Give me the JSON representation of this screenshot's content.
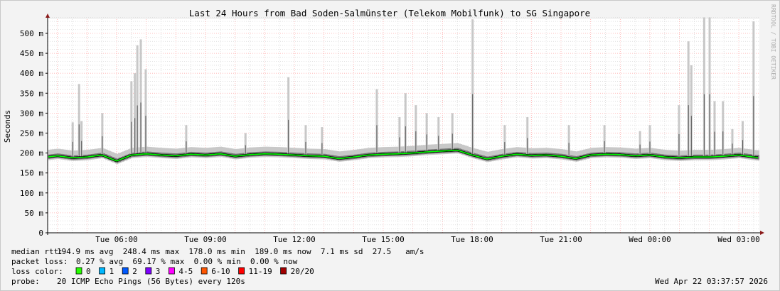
{
  "chart_data": {
    "type": "line",
    "title": "Last 24 Hours from Bad Soden-Salmünster (Telekom Mobilfunk) to SG Singapore",
    "ylabel": "Seconds",
    "xlabel": "",
    "ylim": [
      0,
      0.54
    ],
    "y_ticks": [
      "0",
      "50 m",
      "100 m",
      "150 m",
      "200 m",
      "250 m",
      "300 m",
      "350 m",
      "400 m",
      "450 m",
      "500 m"
    ],
    "x_ticks": [
      "Tue 06:00",
      "Tue 09:00",
      "Tue 12:00",
      "Tue 15:00",
      "Tue 18:00",
      "Tue 21:00",
      "Wed 00:00",
      "Wed 03:00"
    ],
    "x_range": [
      "Tue 03:38",
      "Wed 03:38"
    ],
    "grid": true,
    "watermark": "RRDTOOL / TOBI OETIKER",
    "median_rtt_ms": {
      "x": [
        "Tue 03:40",
        "Tue 04:00",
        "Tue 04:30",
        "Tue 05:00",
        "Tue 05:30",
        "Tue 06:00",
        "Tue 06:30",
        "Tue 07:00",
        "Tue 07:30",
        "Tue 08:00",
        "Tue 08:30",
        "Tue 09:00",
        "Tue 09:30",
        "Tue 10:00",
        "Tue 10:30",
        "Tue 11:00",
        "Tue 11:30",
        "Tue 12:00",
        "Tue 12:30",
        "Tue 13:00",
        "Tue 13:30",
        "Tue 14:00",
        "Tue 14:30",
        "Tue 15:00",
        "Tue 15:30",
        "Tue 16:00",
        "Tue 16:30",
        "Tue 17:00",
        "Tue 17:30",
        "Tue 18:00",
        "Tue 18:30",
        "Tue 19:00",
        "Tue 19:30",
        "Tue 20:00",
        "Tue 20:30",
        "Tue 21:00",
        "Tue 21:30",
        "Tue 22:00",
        "Tue 22:30",
        "Tue 23:00",
        "Tue 23:30",
        "Wed 00:00",
        "Wed 00:30",
        "Wed 01:00",
        "Wed 01:30",
        "Wed 02:00",
        "Wed 02:30",
        "Wed 03:00",
        "Wed 03:30",
        "Wed 03:37"
      ],
      "values": [
        190,
        193,
        188,
        190,
        195,
        180,
        195,
        198,
        195,
        193,
        197,
        195,
        198,
        192,
        196,
        198,
        197,
        195,
        193,
        192,
        186,
        190,
        195,
        197,
        198,
        200,
        203,
        205,
        207,
        195,
        185,
        192,
        197,
        194,
        195,
        192,
        186,
        195,
        197,
        196,
        193,
        195,
        190,
        188,
        190,
        190,
        192,
        195,
        190,
        189
      ]
    },
    "smoke_max_ms": {
      "x": [
        "Tue 04:31",
        "Tue 04:44",
        "Tue 04:49",
        "Tue 05:31",
        "Tue 06:30",
        "Tue 06:37",
        "Tue 06:42",
        "Tue 06:49",
        "Tue 06:59",
        "Tue 08:21",
        "Tue 10:21",
        "Tue 11:48",
        "Tue 12:23",
        "Tue 12:56",
        "Tue 14:47",
        "Tue 15:33",
        "Tue 15:45",
        "Tue 16:06",
        "Tue 16:28",
        "Tue 16:52",
        "Tue 17:20",
        "Tue 18:01",
        "Tue 19:06",
        "Tue 19:52",
        "Tue 21:16",
        "Tue 22:28",
        "Tue 23:40",
        "Wed 00:00",
        "Wed 00:59",
        "Wed 01:18",
        "Wed 01:24",
        "Wed 01:50",
        "Wed 02:01",
        "Wed 02:11",
        "Wed 02:28",
        "Wed 02:47",
        "Wed 03:08",
        "Wed 03:30"
      ],
      "values": [
        277,
        373,
        280,
        300,
        380,
        400,
        470,
        485,
        410,
        270,
        250,
        390,
        270,
        265,
        360,
        290,
        350,
        320,
        300,
        290,
        300,
        535,
        270,
        290,
        270,
        270,
        255,
        270,
        320,
        480,
        420,
        540,
        540,
        330,
        330,
        260,
        280,
        530
      ]
    },
    "colors": {
      "median_loss_0": "#00ff00",
      "median_loss_1": "#00b8ff",
      "smoke": "#c8c8c8",
      "hour_grid": "#ffaaaa",
      "minor_grid": "#d8d8d8",
      "axis": "#000000",
      "arrow": "#8b1a1a"
    }
  },
  "legend": {
    "median_rtt": {
      "label": "median rtt:",
      "text": "194.9 ms avg  248.4 ms max  178.0 ms min  189.0 ms now  7.1 ms sd  27.5   am/s"
    },
    "packet_loss": {
      "label": "packet loss:",
      "text": "0.27 % avg  69.17 % max  0.00 % min  0.00 % now"
    },
    "loss_color": {
      "label": "loss color:",
      "items": [
        {
          "label": "0",
          "color": "#26ff00"
        },
        {
          "label": "1",
          "color": "#00b8ff"
        },
        {
          "label": "2",
          "color": "#0059ff"
        },
        {
          "label": "3",
          "color": "#7e00ff"
        },
        {
          "label": "4-5",
          "color": "#ff00ff"
        },
        {
          "label": "6-10",
          "color": "#ff5500"
        },
        {
          "label": "11-19",
          "color": "#ff0000"
        },
        {
          "label": "20/20",
          "color": "#a10000"
        }
      ]
    },
    "probe": {
      "label": "probe:",
      "text": "20 ICMP Echo Pings (56 Bytes) every 120s"
    },
    "timestamp": "Wed Apr 22 03:37:57 2026"
  }
}
